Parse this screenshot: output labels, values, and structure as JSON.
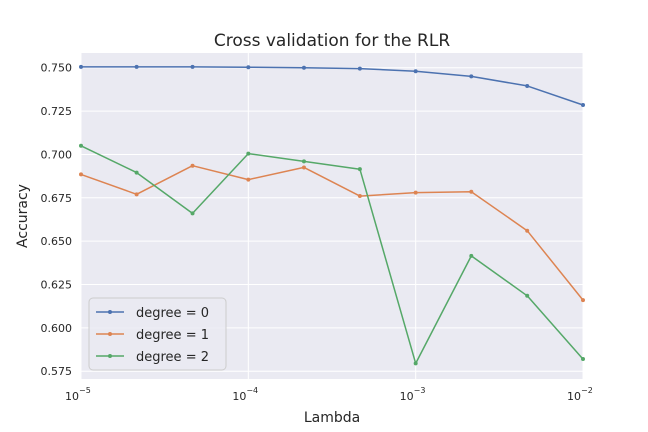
{
  "chart_data": {
    "type": "line",
    "title": "Cross validation for the RLR",
    "xlabel": "Lambda",
    "ylabel": "Accuracy",
    "xscale": "log",
    "xlim": [
      1e-05,
      0.01
    ],
    "ylim": [
      0.5705,
      0.7585
    ],
    "grid": true,
    "legend_position": "lower-left",
    "x_ticks": [
      {
        "value": 1e-05,
        "base": "10",
        "exp": "−5"
      },
      {
        "value": 0.0001,
        "base": "10",
        "exp": "−4"
      },
      {
        "value": 0.001,
        "base": "10",
        "exp": "−3"
      },
      {
        "value": 0.01,
        "base": "10",
        "exp": "−2"
      }
    ],
    "y_ticks": [
      "0.575",
      "0.600",
      "0.625",
      "0.650",
      "0.675",
      "0.700",
      "0.725",
      "0.750"
    ],
    "x": [
      1e-05,
      2.15e-05,
      4.64e-05,
      0.0001,
      0.000215,
      0.000464,
      0.001,
      0.00215,
      0.00464,
      0.01
    ],
    "series": [
      {
        "name": "degree = 0",
        "color": "#4c72b0",
        "values": [
          0.7505,
          0.7505,
          0.7505,
          0.7503,
          0.75,
          0.7495,
          0.748,
          0.745,
          0.7395,
          0.7285
        ]
      },
      {
        "name": "degree = 1",
        "color": "#dd8452",
        "values": [
          0.6885,
          0.677,
          0.6935,
          0.6855,
          0.6925,
          0.676,
          0.678,
          0.6785,
          0.656,
          0.616
        ]
      },
      {
        "name": "degree = 2",
        "color": "#55a868",
        "values": [
          0.705,
          0.6895,
          0.666,
          0.7005,
          0.696,
          0.6915,
          0.5795,
          0.6415,
          0.6185,
          0.582
        ]
      }
    ]
  }
}
